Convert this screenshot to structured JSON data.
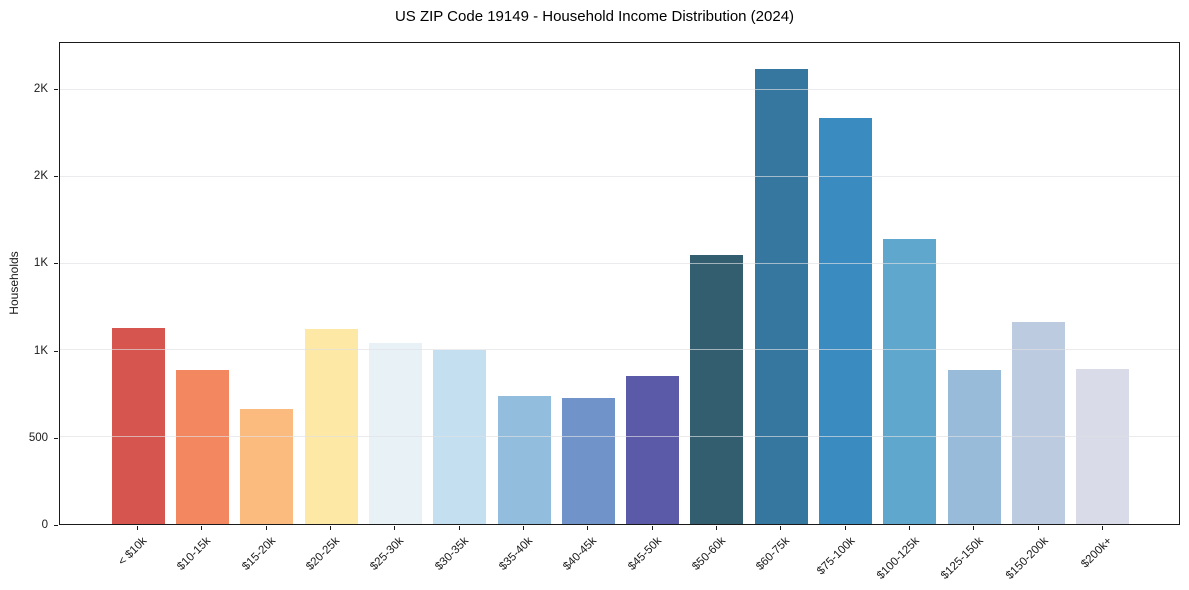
{
  "chart_data": {
    "type": "bar",
    "title": "US ZIP Code 19149 - Household Income Distribution (2024)",
    "xlabel": "",
    "ylabel": "Households",
    "categories": [
      "< $10k",
      "$10-15k",
      "$15-20k",
      "$20-25k",
      "$25-30k",
      "$30-35k",
      "$35-40k",
      "$40-45k",
      "$45-50k",
      "$50-60k",
      "$60-75k",
      "$75-100k",
      "$100-125k",
      "$125-150k",
      "$150-200k",
      "$200k+"
    ],
    "values": [
      1130,
      885,
      660,
      1125,
      1040,
      1000,
      735,
      725,
      855,
      1550,
      2620,
      2340,
      1640,
      885,
      1165,
      895
    ],
    "bar_colors": [
      "#d6564f",
      "#f3875f",
      "#fbbb7e",
      "#fde8a5",
      "#e7f1f6",
      "#c3dff0",
      "#93bddc",
      "#7094c9",
      "#5b5aa9",
      "#335e70",
      "#35779e",
      "#3a8cc0",
      "#60a7cd",
      "#98bbda",
      "#bdcbe0",
      "#d9dbe8"
    ],
    "ylim": [
      0,
      2770
    ],
    "yticks": [
      {
        "value": 0,
        "label": "0"
      },
      {
        "value": 500,
        "label": "500"
      },
      {
        "value": 1000,
        "label": "1K"
      },
      {
        "value": 1500,
        "label": "1K"
      },
      {
        "value": 2000,
        "label": "2K"
      },
      {
        "value": 2500,
        "label": "2K"
      }
    ],
    "x_tick_rotation_deg": 45,
    "grid": "horizontal",
    "grid_color": "#e7e7ea",
    "axis_color": "#1a1a1a",
    "background": "#ffffff",
    "legend": "none"
  }
}
